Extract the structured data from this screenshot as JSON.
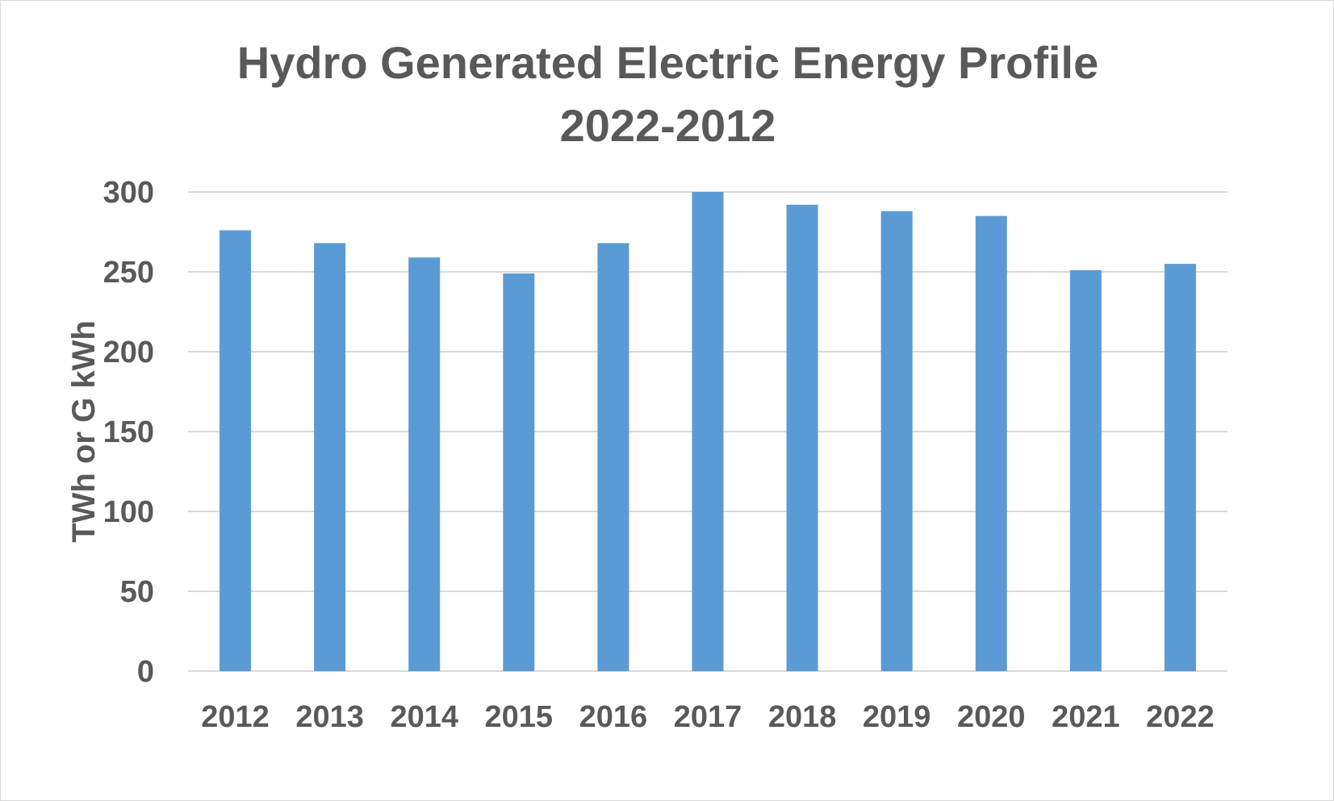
{
  "chart_data": {
    "type": "bar",
    "title": "Hydro Generated Electric Energy Profile",
    "subtitle": "2022-2012",
    "xlabel": "",
    "ylabel": "TWh or G kWh",
    "categories": [
      "2012",
      "2013",
      "2014",
      "2015",
      "2016",
      "2017",
      "2018",
      "2019",
      "2020",
      "2021",
      "2022"
    ],
    "values": [
      276,
      268,
      259,
      249,
      268,
      300,
      292,
      288,
      285,
      251,
      255
    ],
    "ylim": [
      0,
      300
    ],
    "yticks": [
      0,
      50,
      100,
      150,
      200,
      250,
      300
    ],
    "grid": true,
    "legend": "none",
    "colors": {
      "bar": "#5b9bd5",
      "grid": "#d9d9d9",
      "text": "#595959"
    }
  }
}
